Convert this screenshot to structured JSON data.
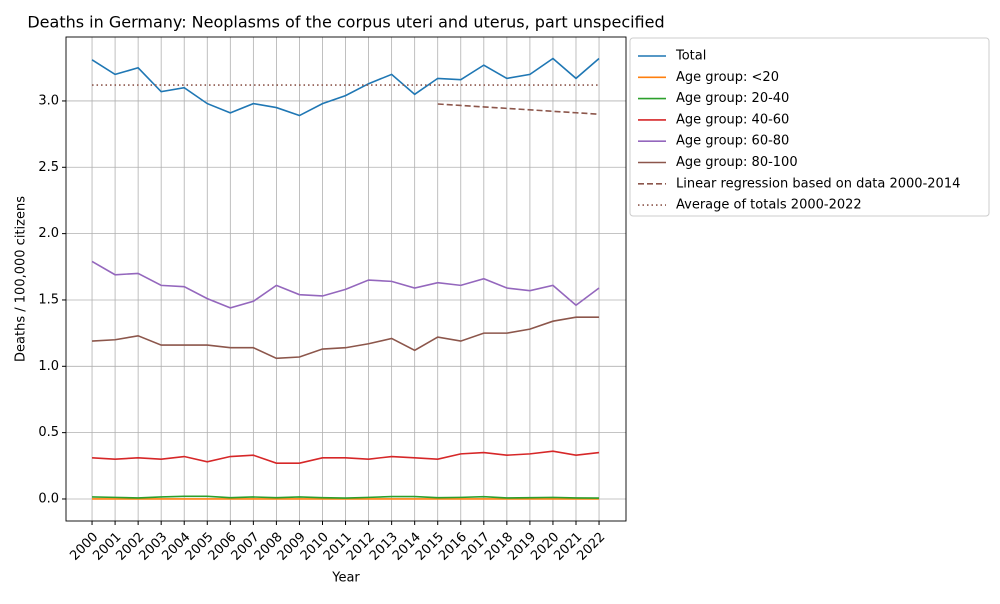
{
  "chart_data": {
    "type": "line",
    "title": "Deaths in Germany: Neoplasms of the corpus uteri and uterus, part unspecified",
    "x_label": "Year",
    "y_label": "Deaths / 100,000 citizens",
    "x": [
      2000,
      2001,
      2002,
      2003,
      2004,
      2005,
      2006,
      2007,
      2008,
      2009,
      2010,
      2011,
      2012,
      2013,
      2014,
      2015,
      2016,
      2017,
      2018,
      2019,
      2020,
      2021,
      2022
    ],
    "xlim": [
      1998.87,
      2023.17
    ],
    "xticks": [
      2000,
      2001,
      2002,
      2003,
      2004,
      2005,
      2006,
      2007,
      2008,
      2009,
      2010,
      2011,
      2012,
      2013,
      2014,
      2015,
      2016,
      2017,
      2018,
      2019,
      2020,
      2021,
      2022
    ],
    "ylim": [
      -0.166,
      3.482
    ],
    "yticks": [
      {
        "value": 0,
        "label": "0.0"
      },
      0.5,
      {
        "value": 1,
        "label": "1.0"
      },
      1.5,
      {
        "value": 2,
        "label": "2.0"
      },
      2.5,
      {
        "value": 3,
        "label": "3.0"
      }
    ],
    "grid": true,
    "legend": "outside upper right",
    "series": [
      {
        "name": "Total",
        "color": "#1f77b4",
        "line": "solid",
        "values": [
          3.31,
          3.2,
          3.25,
          3.07,
          3.1,
          2.98,
          2.91,
          2.98,
          2.95,
          2.89,
          2.98,
          3.04,
          3.13,
          3.2,
          3.05,
          3.17,
          3.16,
          3.27,
          3.17,
          3.2,
          3.32,
          3.17,
          3.32
        ]
      },
      {
        "name": "Age group: <20",
        "color": "#ff7f0e",
        "line": "solid",
        "values": [
          0,
          0,
          0,
          0,
          0,
          0,
          0,
          0,
          0,
          0,
          0,
          0,
          0,
          0,
          0,
          0,
          0,
          0,
          0,
          0,
          0,
          0,
          0
        ]
      },
      {
        "name": "Age group: 20-40",
        "color": "#2ca02c",
        "line": "solid",
        "values": [
          0.015,
          0.012,
          0.008,
          0.015,
          0.02,
          0.02,
          0.01,
          0.015,
          0.01,
          0.015,
          0.01,
          0.007,
          0.012,
          0.018,
          0.018,
          0.01,
          0.012,
          0.017,
          0.008,
          0.01,
          0.012,
          0.008,
          0.007
        ]
      },
      {
        "name": "Age group: 40-60",
        "color": "#d62728",
        "line": "solid",
        "values": [
          0.31,
          0.3,
          0.31,
          0.3,
          0.32,
          0.28,
          0.32,
          0.33,
          0.27,
          0.27,
          0.31,
          0.31,
          0.3,
          0.32,
          0.31,
          0.3,
          0.34,
          0.35,
          0.33,
          0.34,
          0.36,
          0.33,
          0.35
        ]
      },
      {
        "name": "Age group: 60-80",
        "color": "#9467bd",
        "line": "solid",
        "values": [
          1.79,
          1.69,
          1.7,
          1.61,
          1.6,
          1.51,
          1.44,
          1.49,
          1.61,
          1.54,
          1.53,
          1.58,
          1.65,
          1.64,
          1.59,
          1.63,
          1.61,
          1.66,
          1.59,
          1.57,
          1.61,
          1.46,
          1.59
        ]
      },
      {
        "name": "Age group: 80-100",
        "color": "#8c564b",
        "line": "solid",
        "values": [
          1.19,
          1.2,
          1.23,
          1.16,
          1.16,
          1.16,
          1.14,
          1.14,
          1.06,
          1.07,
          1.13,
          1.14,
          1.17,
          1.21,
          1.12,
          1.22,
          1.19,
          1.25,
          1.25,
          1.28,
          1.34,
          1.37,
          1.37
        ]
      },
      {
        "name": "Linear regression based on data 2000-2014",
        "color": "#8c564b",
        "line": "dashed",
        "values": [
          null,
          null,
          null,
          null,
          null,
          null,
          null,
          null,
          null,
          null,
          null,
          null,
          null,
          null,
          null,
          2.977,
          2.966,
          2.955,
          2.944,
          2.933,
          2.922,
          2.911,
          2.9
        ]
      },
      {
        "name": "Average of totals 2000-2022",
        "color": "#8c564b",
        "line": "dotted",
        "values": [
          3.12,
          3.12,
          3.12,
          3.12,
          3.12,
          3.12,
          3.12,
          3.12,
          3.12,
          3.12,
          3.12,
          3.12,
          3.12,
          3.12,
          3.12,
          3.12,
          3.12,
          3.12,
          3.12,
          3.12,
          3.12,
          3.12,
          3.12
        ]
      }
    ]
  }
}
